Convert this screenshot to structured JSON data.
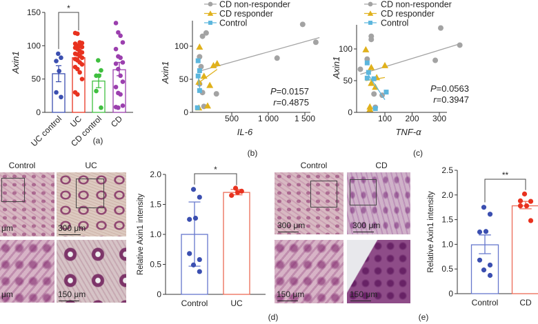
{
  "micrographs": {
    "left": {
      "columns": [
        "Control",
        "UC"
      ],
      "scale_top": [
        "μm",
        "300 μm"
      ],
      "scale_bottom": [
        "μm",
        "150 μm"
      ]
    },
    "right": {
      "columns": [
        "Control",
        "CD"
      ],
      "scale_top": [
        "300 μm",
        "300 μm"
      ],
      "scale_bottom": [
        "150 μm",
        "150 μm"
      ]
    },
    "stain_colors": {
      "hematoxylin": "#8e4c88",
      "background": "#d8b9c2"
    }
  },
  "chart_data": [
    {
      "panel": "(a)",
      "type": "bar",
      "ylabel": "Axin1",
      "ylim": [
        0,
        150
      ],
      "yticks": [
        "0",
        "50",
        "100",
        "150"
      ],
      "ytick_values": [
        0,
        50,
        100,
        150
      ],
      "categories": [
        "UC control",
        "UC",
        "CD control",
        "CD"
      ],
      "colors": [
        "#3b4fb0",
        "#e8321f",
        "#3fbf3f",
        "#9b3fae"
      ],
      "means": [
        58,
        82,
        47,
        64
      ],
      "error": [
        [
          46,
          70
        ],
        [
          77,
          87
        ],
        [
          37,
          57
        ],
        [
          55,
          75
        ]
      ],
      "points": [
        [
          88,
          82,
          77,
          62,
          30,
          23
        ],
        [
          119,
          118,
          105,
          104,
          103,
          100,
          99,
          98,
          97,
          95,
          92,
          90,
          88,
          87,
          85,
          82,
          80,
          78,
          75,
          72,
          68,
          65,
          60,
          50,
          30,
          27
        ],
        [
          78,
          63,
          55,
          55,
          32,
          7
        ],
        [
          134,
          120,
          115,
          105,
          95,
          84,
          82,
          75,
          73,
          65,
          55,
          46,
          38,
          29,
          27,
          10,
          8,
          7
        ]
      ],
      "significance": [
        {
          "pair": [
            0,
            1
          ],
          "label": "*"
        }
      ]
    },
    {
      "panel": "(b)",
      "type": "scatter",
      "xlabel": "IL-6",
      "ylabel": "Axin1",
      "xticks": [
        "500",
        "1 000",
        "1 500"
      ],
      "xtick_values": [
        500,
        1000,
        1500
      ],
      "yticks": [
        "0",
        "50",
        "100"
      ],
      "ytick_values": [
        0,
        50,
        100
      ],
      "series": [
        {
          "name": "CD non-responder",
          "marker": "circle",
          "color": "#a3a3a3",
          "points": [
            [
              100,
              115
            ],
            [
              150,
              120
            ],
            [
              1470,
              133
            ],
            [
              1650,
              106
            ],
            [
              1120,
              82
            ],
            [
              60,
              84
            ],
            [
              80,
              69
            ],
            [
              100,
              30
            ],
            [
              290,
              28
            ],
            [
              120,
              9
            ],
            [
              60,
              43
            ]
          ],
          "fit": [
            [
              80,
              63
            ],
            [
              1700,
              113
            ]
          ]
        },
        {
          "name": "CD responder",
          "marker": "triangle",
          "color": "#e0b11c",
          "points": [
            [
              60,
              99
            ],
            [
              250,
              71
            ],
            [
              300,
              74
            ],
            [
              120,
              55
            ],
            [
              50,
              46
            ],
            [
              200,
              41
            ],
            [
              50,
              7
            ],
            [
              170,
              10
            ]
          ],
          "fit": [
            [
              50,
              45
            ],
            [
              300,
              65
            ]
          ]
        },
        {
          "name": "Control",
          "marker": "square",
          "color": "#5cb6dd",
          "points": [
            [
              40,
              78
            ],
            [
              60,
              63
            ],
            [
              40,
              55
            ],
            [
              60,
              33
            ],
            [
              30,
              7
            ]
          ],
          "fit": [
            [
              40,
              55
            ],
            [
              70,
              30
            ]
          ]
        }
      ],
      "stats": {
        "p_symbol": "P",
        "p_value": "=0.0157",
        "r_symbol": "r",
        "r_value": "=0.4875"
      }
    },
    {
      "panel": "(c)",
      "type": "scatter",
      "xlabel": "TNF-α",
      "ylabel": "Axin1",
      "xticks": [
        "100",
        "200",
        "300"
      ],
      "xtick_values": [
        100,
        200,
        300
      ],
      "yticks": [
        "0",
        "50",
        "100"
      ],
      "ytick_values": [
        0,
        50,
        100
      ],
      "series": [
        {
          "name": "CD non-responder",
          "marker": "circle",
          "color": "#a3a3a3",
          "points": [
            [
              50,
              120
            ],
            [
              50,
              115
            ],
            [
              35,
              84
            ],
            [
              10,
              68
            ],
            [
              305,
              133
            ],
            [
              375,
              106
            ],
            [
              285,
              82
            ],
            [
              60,
              29
            ],
            [
              90,
              27
            ],
            [
              65,
              8
            ]
          ],
          "fit": [
            [
              10,
              60
            ],
            [
              375,
              108
            ]
          ]
        },
        {
          "name": "CD responder",
          "marker": "triangle",
          "color": "#e0b11c",
          "points": [
            [
              30,
              99
            ],
            [
              50,
              71
            ],
            [
              100,
              74
            ],
            [
              70,
              55
            ],
            [
              50,
              46
            ],
            [
              65,
              40
            ],
            [
              45,
              9
            ],
            [
              45,
              5
            ]
          ],
          "fit": [
            [
              30,
              50
            ],
            [
              100,
              55
            ]
          ]
        },
        {
          "name": "Control",
          "marker": "square",
          "color": "#5cb6dd",
          "points": [
            [
              35,
              78
            ],
            [
              40,
              63
            ],
            [
              35,
              54
            ],
            [
              60,
              53
            ],
            [
              105,
              32
            ],
            [
              65,
              6
            ]
          ],
          "fit": [
            [
              35,
              62
            ],
            [
              100,
              20
            ]
          ]
        }
      ],
      "stats": {
        "p_symbol": "P",
        "p_value": "=0.0563",
        "r_symbol": "r",
        "r_value": "=0.3947"
      }
    },
    {
      "panel": "(d)",
      "type": "bar",
      "ylabel": "Relative Axin1 intensity",
      "ylim": [
        0,
        2.0
      ],
      "yticks": [
        "0",
        "0.5",
        "1.0",
        "1.5",
        "2.0"
      ],
      "ytick_values": [
        0,
        0.5,
        1.0,
        1.5,
        2.0
      ],
      "categories": [
        "Control",
        "UC"
      ],
      "colors": [
        "#3b4fb0",
        "#e8321f"
      ],
      "outline_colors": [
        "#6577cc",
        "#ec6a55"
      ],
      "means": [
        1.0,
        1.7
      ],
      "error": [
        [
          0.47,
          1.54
        ],
        [
          1.66,
          1.75
        ]
      ],
      "points": [
        [
          1.75,
          1.62,
          1.25,
          1.27,
          0.68,
          0.58,
          0.49,
          0.38
        ],
        [
          1.77,
          1.72,
          1.65,
          1.7
        ]
      ],
      "significance": [
        {
          "pair": [
            0,
            1
          ],
          "label": "*"
        }
      ]
    },
    {
      "panel": "(e)",
      "type": "bar",
      "ylabel": "Relative Axin1 intensity",
      "ylim": [
        0,
        2.5
      ],
      "yticks": [
        "0",
        "0.5",
        "1.0",
        "1.5",
        "2.0",
        "2.5"
      ],
      "ytick_values": [
        0,
        0.5,
        1.0,
        1.5,
        2.0,
        2.5
      ],
      "categories": [
        "Control",
        "CD"
      ],
      "colors": [
        "#3b4fb0",
        "#e8321f"
      ],
      "outline_colors": [
        "#6577cc",
        "#ec6a55"
      ],
      "means": [
        0.99,
        1.78
      ],
      "error": [
        [
          0.81,
          1.19
        ],
        [
          1.72,
          1.87
        ]
      ],
      "points": [
        [
          1.75,
          1.61,
          1.25,
          1.26,
          0.68,
          0.58,
          0.48,
          0.37
        ],
        [
          2.02,
          1.87,
          1.88,
          1.78,
          1.78,
          1.48
        ]
      ],
      "significance": [
        {
          "pair": [
            0,
            1
          ],
          "label": "**"
        }
      ]
    }
  ]
}
